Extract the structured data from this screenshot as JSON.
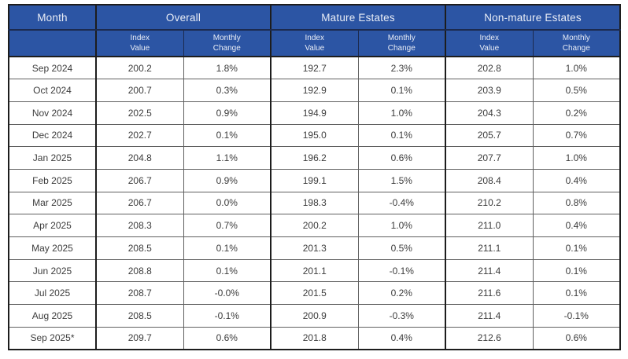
{
  "chart_data": {
    "type": "table",
    "header": {
      "month": "Month",
      "groups": [
        "Overall",
        "Mature Estates",
        "Non-mature Estates"
      ],
      "subheaders": {
        "index": "Index\nValue",
        "change": "Monthly\nChange"
      }
    },
    "columns": [
      "Month",
      "Overall Index Value",
      "Overall Monthly Change",
      "Mature Estates Index Value",
      "Mature Estates Monthly Change",
      "Non-mature Estates Index Value",
      "Non-mature Estates Monthly Change"
    ],
    "rows": [
      {
        "cells": [
          "Sep 2024",
          "200.2",
          "1.8%",
          "192.7",
          "2.3%",
          "202.8",
          "1.0%"
        ]
      },
      {
        "cells": [
          "Oct 2024",
          "200.7",
          "0.3%",
          "192.9",
          "0.1%",
          "203.9",
          "0.5%"
        ]
      },
      {
        "cells": [
          "Nov 2024",
          "202.5",
          "0.9%",
          "194.9",
          "1.0%",
          "204.3",
          "0.2%"
        ]
      },
      {
        "cells": [
          "Dec 2024",
          "202.7",
          "0.1%",
          "195.0",
          "0.1%",
          "205.7",
          "0.7%"
        ]
      },
      {
        "cells": [
          "Jan 2025",
          "204.8",
          "1.1%",
          "196.2",
          "0.6%",
          "207.7",
          "1.0%"
        ]
      },
      {
        "cells": [
          "Feb 2025",
          "206.7",
          "0.9%",
          "199.1",
          "1.5%",
          "208.4",
          "0.4%"
        ]
      },
      {
        "cells": [
          "Mar 2025",
          "206.7",
          "0.0%",
          "198.3",
          "-0.4%",
          "210.2",
          "0.8%"
        ]
      },
      {
        "cells": [
          "Apr 2025",
          "208.3",
          "0.7%",
          "200.2",
          "1.0%",
          "211.0",
          "0.4%"
        ]
      },
      {
        "cells": [
          "May 2025",
          "208.5",
          "0.1%",
          "201.3",
          "0.5%",
          "211.1",
          "0.1%"
        ]
      },
      {
        "cells": [
          "Jun 2025",
          "208.8",
          "0.1%",
          "201.1",
          "-0.1%",
          "211.4",
          "0.1%"
        ]
      },
      {
        "cells": [
          "Jul 2025",
          "208.7",
          "-0.0%",
          "201.5",
          "0.2%",
          "211.6",
          "0.1%"
        ]
      },
      {
        "cells": [
          "Aug 2025",
          "208.5",
          "-0.1%",
          "200.9",
          "-0.3%",
          "211.4",
          "-0.1%"
        ]
      },
      {
        "cells": [
          "Sep 2025*",
          "209.7",
          "0.6%",
          "201.8",
          "0.4%",
          "212.6",
          "0.6%"
        ]
      }
    ]
  },
  "colors": {
    "header_bg": "#2c55a4",
    "header_text": "#e9edf6",
    "header_line": "#1c2a4e",
    "body_text": "#3c3c3c",
    "border_dark": "#1d1d1d",
    "border_light": "#606060"
  }
}
